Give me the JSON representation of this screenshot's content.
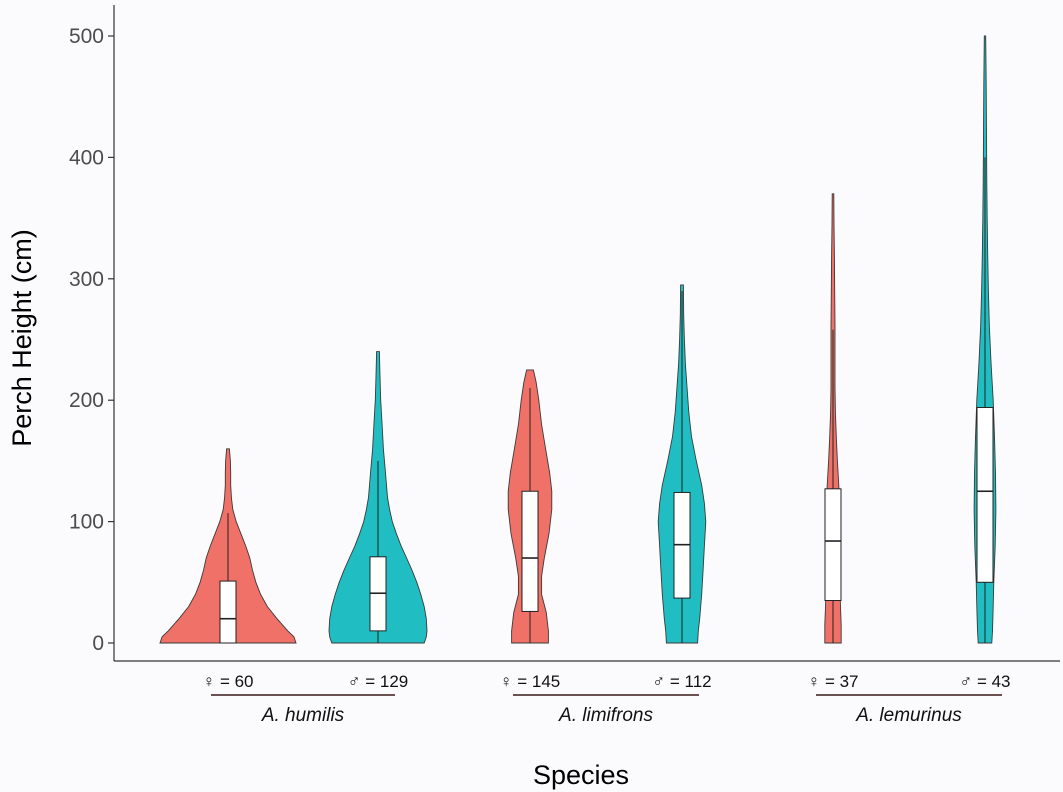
{
  "chart_data": {
    "type": "violin",
    "xlabel": "Species",
    "ylabel": "Perch Height (cm)",
    "ylim": [
      0,
      500
    ],
    "yticks": [
      0,
      100,
      200,
      300,
      400,
      500
    ],
    "grid": false,
    "legend": "none",
    "colors": {
      "female": "#f07167",
      "male": "#20bec2"
    },
    "groups": [
      {
        "species": "A. humilis",
        "female_n_label": "♀ = 60",
        "male_n_label": "♂ = 129"
      },
      {
        "species": "A. limifrons",
        "female_n_label": "♀ = 145",
        "male_n_label": "♂ = 112"
      },
      {
        "species": "A. lemurinus",
        "female_n_label": "♀ = 37",
        "male_n_label": "♂ = 43"
      }
    ],
    "violins": [
      {
        "sex": "female",
        "species": "A. humilis",
        "n": 60,
        "box": {
          "q1": 0,
          "median": 20,
          "q3": 51,
          "whisker_low": 0,
          "whisker_high": 107
        },
        "max": 160,
        "profile": [
          [
            0,
            1.0
          ],
          [
            5,
            0.97
          ],
          [
            10,
            0.88
          ],
          [
            20,
            0.72
          ],
          [
            30,
            0.58
          ],
          [
            40,
            0.48
          ],
          [
            50,
            0.41
          ],
          [
            60,
            0.36
          ],
          [
            70,
            0.32
          ],
          [
            80,
            0.26
          ],
          [
            90,
            0.19
          ],
          [
            100,
            0.12
          ],
          [
            110,
            0.07
          ],
          [
            120,
            0.05
          ],
          [
            130,
            0.04
          ],
          [
            140,
            0.04
          ],
          [
            150,
            0.035
          ],
          [
            160,
            0.02
          ]
        ]
      },
      {
        "sex": "male",
        "species": "A. humilis",
        "n": 129,
        "box": {
          "q1": 10,
          "median": 41,
          "q3": 71,
          "whisker_low": 0,
          "whisker_high": 150
        },
        "max": 240,
        "profile": [
          [
            0,
            0.68
          ],
          [
            5,
            0.71
          ],
          [
            10,
            0.72
          ],
          [
            20,
            0.71
          ],
          [
            30,
            0.68
          ],
          [
            40,
            0.63
          ],
          [
            50,
            0.57
          ],
          [
            60,
            0.5
          ],
          [
            70,
            0.42
          ],
          [
            80,
            0.34
          ],
          [
            90,
            0.27
          ],
          [
            100,
            0.21
          ],
          [
            110,
            0.17
          ],
          [
            120,
            0.14
          ],
          [
            140,
            0.11
          ],
          [
            160,
            0.08
          ],
          [
            180,
            0.06
          ],
          [
            200,
            0.04
          ],
          [
            220,
            0.03
          ],
          [
            240,
            0.02
          ]
        ]
      },
      {
        "sex": "female",
        "species": "A. limifrons",
        "n": 145,
        "box": {
          "q1": 26,
          "median": 70,
          "q3": 125,
          "whisker_low": 0,
          "whisker_high": 210
        },
        "max": 225,
        "profile": [
          [
            0,
            0.27
          ],
          [
            10,
            0.27
          ],
          [
            25,
            0.24
          ],
          [
            40,
            0.17
          ],
          [
            55,
            0.17
          ],
          [
            70,
            0.21
          ],
          [
            90,
            0.28
          ],
          [
            110,
            0.32
          ],
          [
            125,
            0.32
          ],
          [
            140,
            0.29
          ],
          [
            160,
            0.23
          ],
          [
            180,
            0.17
          ],
          [
            200,
            0.13
          ],
          [
            215,
            0.09
          ],
          [
            225,
            0.05
          ]
        ]
      },
      {
        "sex": "male",
        "species": "A. limifrons",
        "n": 112,
        "box": {
          "q1": 37,
          "median": 81,
          "q3": 124,
          "whisker_low": 0,
          "whisker_high": 290
        },
        "max": 295,
        "profile": [
          [
            0,
            0.23
          ],
          [
            10,
            0.24
          ],
          [
            20,
            0.26
          ],
          [
            40,
            0.29
          ],
          [
            60,
            0.31
          ],
          [
            80,
            0.33
          ],
          [
            100,
            0.35
          ],
          [
            115,
            0.33
          ],
          [
            130,
            0.29
          ],
          [
            150,
            0.21
          ],
          [
            170,
            0.14
          ],
          [
            190,
            0.1
          ],
          [
            210,
            0.075
          ],
          [
            230,
            0.05
          ],
          [
            250,
            0.035
          ],
          [
            270,
            0.025
          ],
          [
            295,
            0.02
          ]
        ]
      },
      {
        "sex": "female",
        "species": "A. lemurinus",
        "n": 37,
        "box": {
          "q1": 35,
          "median": 84,
          "q3": 127,
          "whisker_low": 0,
          "whisker_high": 258
        },
        "max": 370,
        "profile": [
          [
            0,
            0.12
          ],
          [
            15,
            0.12
          ],
          [
            30,
            0.11
          ],
          [
            50,
            0.1
          ],
          [
            70,
            0.095
          ],
          [
            90,
            0.1
          ],
          [
            110,
            0.1
          ],
          [
            130,
            0.085
          ],
          [
            150,
            0.065
          ],
          [
            170,
            0.048
          ],
          [
            190,
            0.035
          ],
          [
            210,
            0.03
          ],
          [
            230,
            0.03
          ],
          [
            260,
            0.03
          ],
          [
            290,
            0.025
          ],
          [
            320,
            0.02
          ],
          [
            345,
            0.015
          ],
          [
            370,
            0.012
          ]
        ]
      },
      {
        "sex": "male",
        "species": "A. lemurinus",
        "n": 43,
        "box": {
          "q1": 50,
          "median": 125,
          "q3": 194,
          "whisker_low": 0,
          "whisker_high": 400
        },
        "max": 500,
        "profile": [
          [
            0,
            0.1
          ],
          [
            10,
            0.11
          ],
          [
            30,
            0.12
          ],
          [
            50,
            0.13
          ],
          [
            80,
            0.15
          ],
          [
            110,
            0.16
          ],
          [
            140,
            0.155
          ],
          [
            170,
            0.14
          ],
          [
            200,
            0.12
          ],
          [
            230,
            0.09
          ],
          [
            260,
            0.065
          ],
          [
            290,
            0.05
          ],
          [
            320,
            0.04
          ],
          [
            350,
            0.032
          ],
          [
            380,
            0.027
          ],
          [
            420,
            0.022
          ],
          [
            460,
            0.018
          ],
          [
            500,
            0.01
          ]
        ]
      }
    ]
  }
}
